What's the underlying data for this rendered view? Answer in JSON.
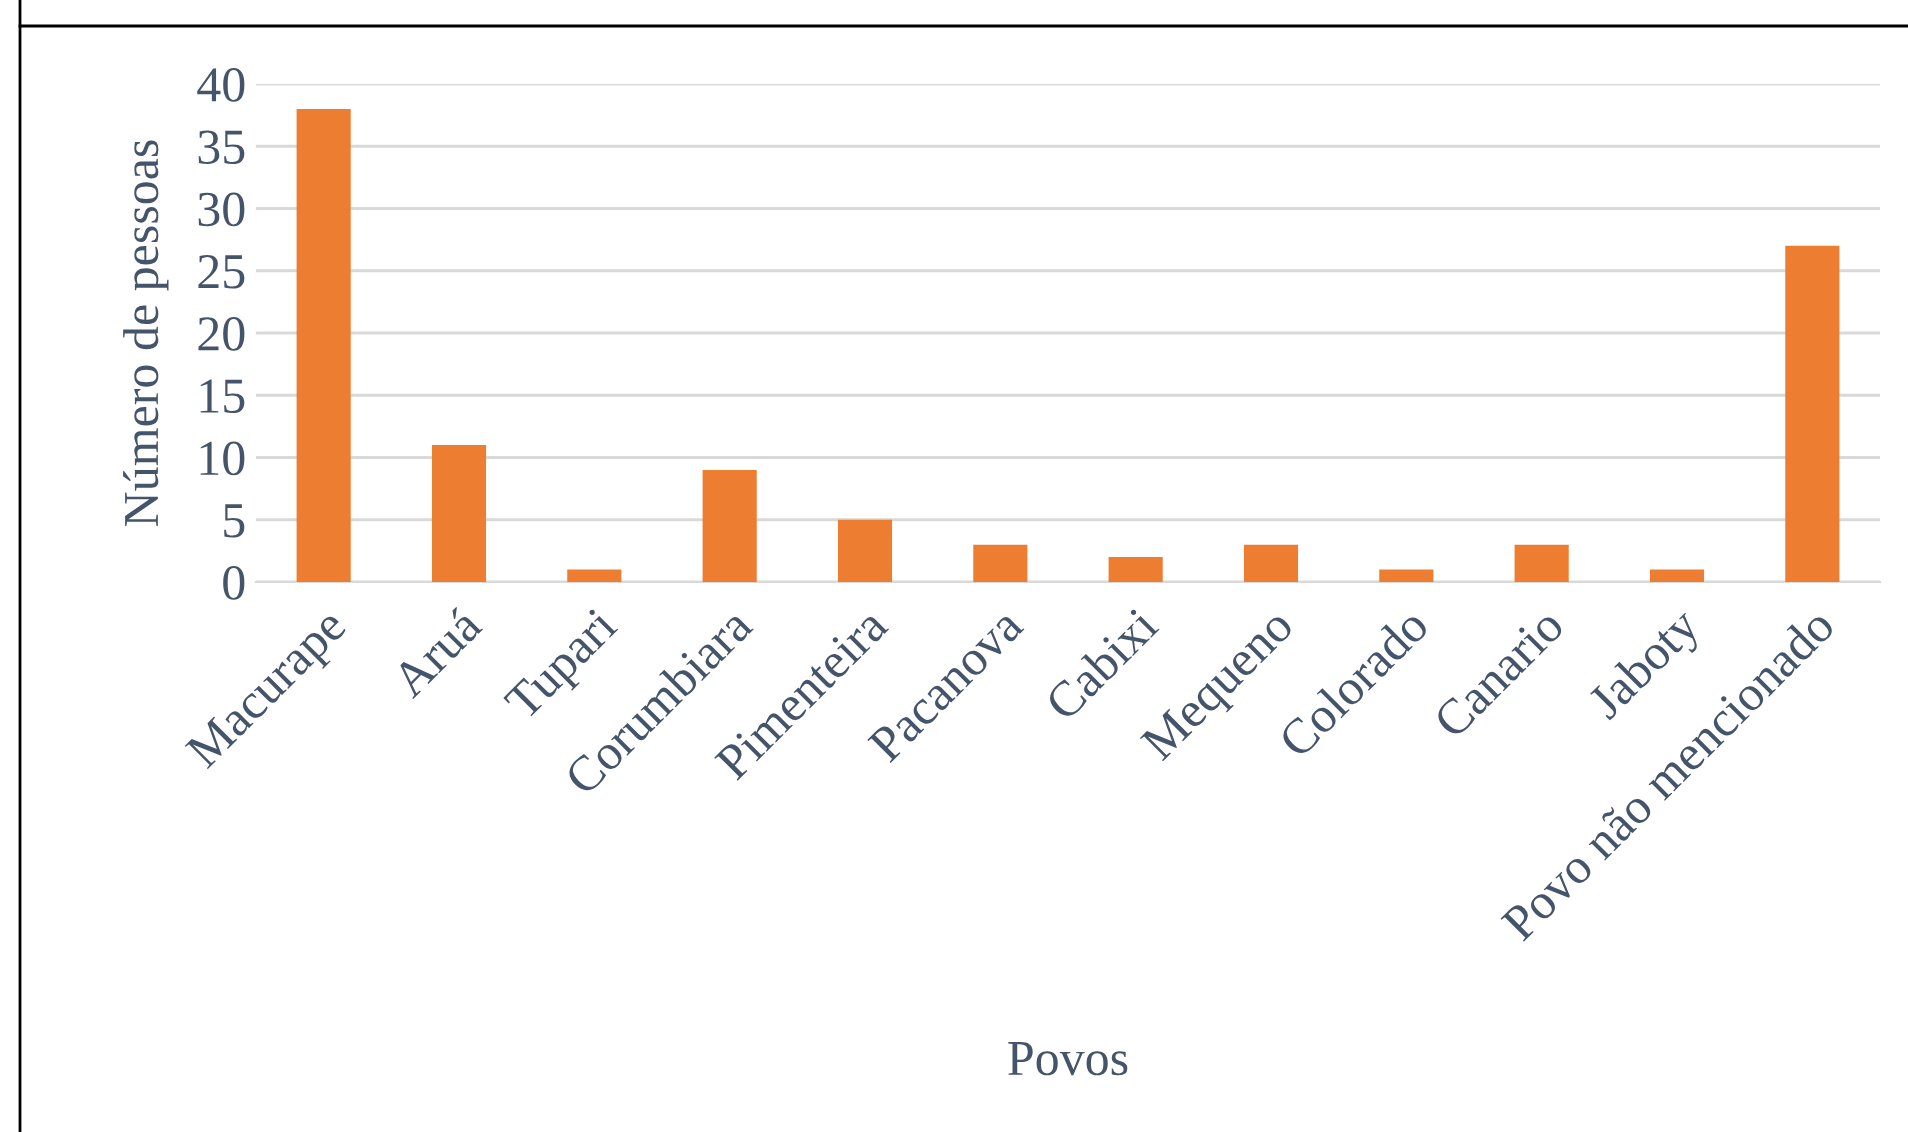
{
  "chart_data": {
    "type": "bar",
    "xlabel": "Povos",
    "ylabel": "Número de pessoas",
    "categories": [
      "Macurape",
      "Aruá",
      "Tupari",
      "Corumbiara",
      "Pimenteira",
      "Pacanova",
      "Cabixi",
      "Mequeno",
      "Colorado",
      "Canario",
      "Jaboty",
      "Povo não mencionado"
    ],
    "values": [
      38,
      11,
      1,
      9,
      5,
      3,
      2,
      3,
      1,
      3,
      1,
      27
    ],
    "color": "#ed7d31",
    "ylim": [
      0,
      40
    ],
    "yticks": [
      0,
      5,
      10,
      15,
      20,
      25,
      30,
      35,
      40
    ],
    "grid": "y",
    "legend": false
  }
}
